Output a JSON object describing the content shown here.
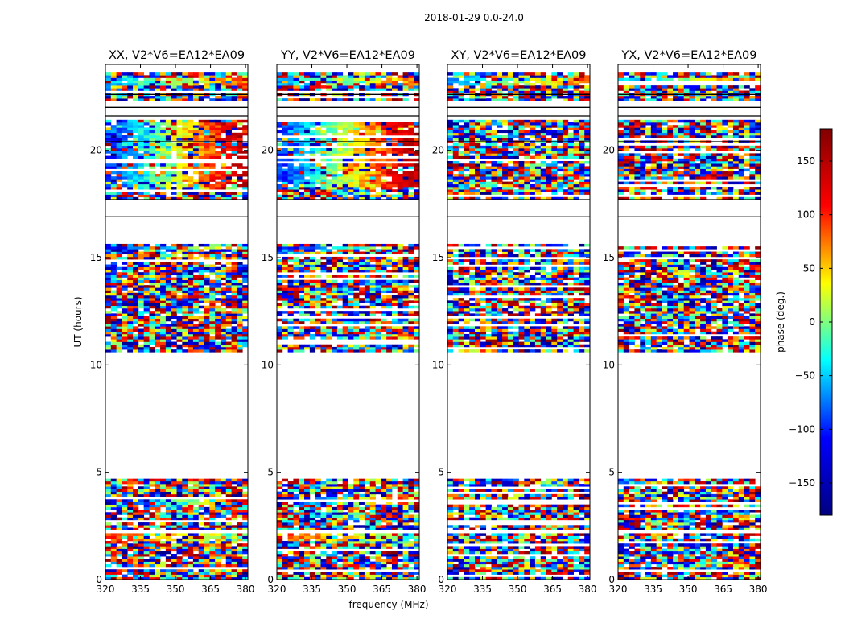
{
  "chart_data": {
    "type": "heatmap",
    "suptitle": "2018-01-29 0.0-24.0",
    "xlabel": "frequency (MHz)",
    "ylabel": "UT (hours)",
    "colorbar_label": "phase (deg.)",
    "xlim": [
      320,
      381
    ],
    "ylim": [
      0,
      24
    ],
    "xticks": [
      320,
      335,
      350,
      365,
      380
    ],
    "yticks": [
      0,
      5,
      10,
      15,
      20
    ],
    "clim": [
      -180,
      180
    ],
    "colorbar_ticks": [
      150,
      100,
      50,
      0,
      -50,
      -100,
      -150
    ],
    "colormap": "jet",
    "colormap_stops": [
      "#000080",
      "#0000ff",
      "#00ffff",
      "#ffff00",
      "#ff0000",
      "#800000"
    ],
    "panels": [
      {
        "title": "XX, V2*V6=EA12*EA09",
        "polarization": "XX"
      },
      {
        "title": "YY, V2*V6=EA12*EA09",
        "polarization": "YY"
      },
      {
        "title": "XY, V2*V6=EA12*EA09",
        "polarization": "XY"
      },
      {
        "title": "YX, V2*V6=EA12*EA09",
        "polarization": "YX"
      }
    ],
    "data_ranges_ut_hours": [
      [
        0.0,
        2.1
      ],
      [
        2.3,
        4.6
      ],
      [
        10.6,
        15.6
      ],
      [
        17.7,
        21.4
      ],
      [
        22.3,
        23.6
      ]
    ],
    "flagged_gap_lines_ut_hours": [
      16.9,
      17.7,
      20.4,
      22.0,
      22.6,
      21.6
    ],
    "structured_bands": [
      {
        "ut": [
          18.3,
          21.2
        ],
        "pols": [
          "XX",
          "YY"
        ],
        "phase_deg": [
          -100,
          150
        ],
        "note": "smooth phase gradient across frequency (low to high)"
      },
      {
        "ut": [
          3.5,
          3.8
        ],
        "pols": [
          "XX",
          "YY"
        ],
        "phase_deg": [
          -150,
          120
        ]
      },
      {
        "ut": [
          1.7,
          2.1
        ],
        "pols": [
          "XX",
          "YY"
        ],
        "phase_deg": [
          100,
          -20
        ]
      },
      {
        "ut": [
          15.3,
          15.5
        ],
        "pols": [
          "XX",
          "YY"
        ],
        "phase_deg": [
          -120,
          60
        ]
      },
      {
        "ut": [
          23.0,
          23.3
        ],
        "pols": [
          "XX",
          "YY",
          "XY",
          "YX"
        ],
        "phase_deg": [
          -60,
          80
        ]
      }
    ]
  }
}
